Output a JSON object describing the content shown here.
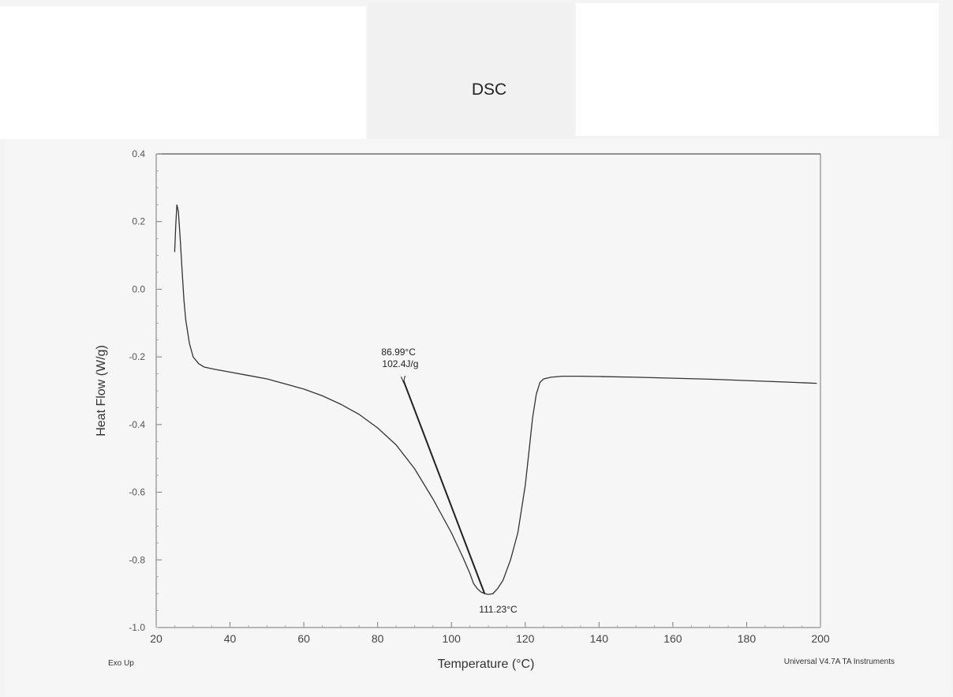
{
  "chart_data": {
    "type": "line",
    "title": "DSC",
    "xlabel": "Temperature (°C)",
    "ylabel": "Heat Flow (W/g)",
    "xlim": [
      20,
      200
    ],
    "ylim": [
      -1.0,
      0.4
    ],
    "xticks": [
      "20",
      "40",
      "60",
      "80",
      "100",
      "120",
      "140",
      "160",
      "180",
      "200"
    ],
    "yticks": [
      "0.4",
      "0.2",
      "0.0",
      "-0.2",
      "-0.4",
      "-0.6",
      "-0.8",
      "-1.0"
    ],
    "grid": false,
    "legend": "none",
    "series": [
      {
        "color": "#333333",
        "x": [
          25.0,
          25.3,
          25.6,
          26.0,
          26.5,
          27.0,
          27.5,
          28.0,
          29.0,
          30.0,
          31.5,
          33.0,
          36.0,
          40.0,
          45.0,
          50.0,
          55.0,
          60.0,
          65.0,
          70.0,
          75.0,
          80.0,
          85.0,
          90.0,
          95.0,
          100.0,
          103.0,
          105.0,
          106.0,
          107.0,
          108.0,
          109.0,
          110.0,
          111.23,
          112.5,
          114.0,
          116.0,
          118.0,
          120.0,
          121.0,
          122.0,
          123.0,
          124.0,
          125.0,
          127.0,
          130.0,
          135.0,
          140.0,
          150.0,
          160.0,
          170.0,
          180.0,
          190.0,
          199.0
        ],
        "y": [
          0.11,
          0.19,
          0.25,
          0.23,
          0.15,
          0.06,
          -0.03,
          -0.09,
          -0.16,
          -0.2,
          -0.22,
          -0.23,
          -0.237,
          -0.245,
          -0.255,
          -0.265,
          -0.28,
          -0.295,
          -0.315,
          -0.34,
          -0.37,
          -0.41,
          -0.46,
          -0.53,
          -0.62,
          -0.72,
          -0.79,
          -0.84,
          -0.87,
          -0.885,
          -0.895,
          -0.9,
          -0.902,
          -0.9,
          -0.885,
          -0.86,
          -0.8,
          -0.72,
          -0.58,
          -0.48,
          -0.38,
          -0.31,
          -0.275,
          -0.265,
          -0.26,
          -0.257,
          -0.257,
          -0.258,
          -0.26,
          -0.263,
          -0.266,
          -0.27,
          -0.274,
          -0.278
        ]
      }
    ],
    "baseline": {
      "x": [
        87,
        109
      ],
      "y": [
        -0.27,
        -0.9
      ]
    },
    "annotations": {
      "onset_temp": "86.99°C",
      "enthalpy": "102.4J/g",
      "peak_temp": "111.23°C"
    },
    "footer_left": "Exo Up",
    "footer_right": "Universal V4.7A TA Instruments"
  }
}
